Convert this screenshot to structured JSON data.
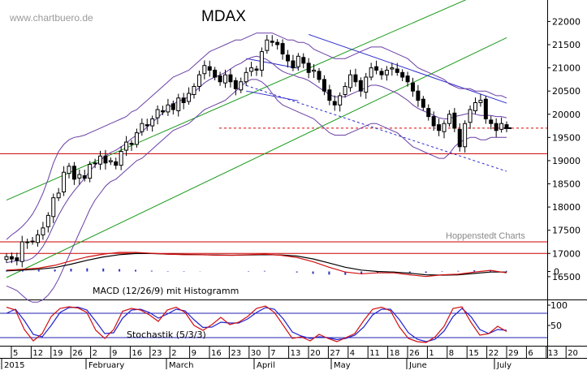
{
  "watermark": "www.chartbuero.de",
  "hoppenstedt": "Hoppenstedt Charts",
  "chart_data": [
    {
      "type": "candlestick",
      "title": "MDAX",
      "ylim": [
        16200,
        22200
      ],
      "yticks": [
        16500,
        17000,
        17500,
        18000,
        18500,
        19000,
        19500,
        20000,
        20500,
        21000,
        21500,
        22000
      ],
      "ytick_labels": [
        "16500",
        "17000",
        "17500",
        "18000",
        "18500",
        "19000",
        "19500",
        "20000",
        "20500",
        "21000",
        "21500",
        "22000"
      ],
      "x_tick_labels": [
        "5",
        "12",
        "19",
        "26",
        "2",
        "9",
        "16",
        "23",
        "2",
        "9",
        "16",
        "23",
        "30",
        "7",
        "13",
        "20",
        "27",
        "4",
        "11",
        "18",
        "26",
        "1",
        "8",
        "15",
        "22",
        "29",
        "6",
        "13",
        "20"
      ],
      "month_labels": [
        "2015",
        "February",
        "March",
        "April",
        "May",
        "June",
        "July"
      ],
      "close": [
        16930,
        16880,
        16850,
        17250,
        17240,
        17260,
        17400,
        17550,
        17820,
        18200,
        18300,
        18750,
        18880,
        18600,
        18700,
        18620,
        18920,
        18950,
        19100,
        18950,
        19000,
        18900,
        19200,
        19400,
        19350,
        19600,
        19800,
        19750,
        19900,
        20100,
        20050,
        20200,
        20100,
        20350,
        20250,
        20450,
        20600,
        20850,
        21050,
        20950,
        20800,
        20700,
        20850,
        20700,
        20550,
        20700,
        20900,
        21000,
        20950,
        21350,
        21600,
        21550,
        21500,
        21300,
        21150,
        21000,
        21250,
        21100,
        20900,
        20950,
        20750,
        20500,
        20300,
        20200,
        20400,
        20600,
        20850,
        20700,
        20500,
        20800,
        21000,
        20950,
        20850,
        20950,
        21000,
        20900,
        20800,
        20700,
        20500,
        20300,
        20150,
        19950,
        19750,
        19650,
        19800,
        20000,
        19700,
        19300,
        19800,
        20100,
        20250,
        20300,
        19900,
        19800,
        19650,
        19800,
        19700
      ],
      "bb_upper": [
        17300,
        17400,
        17480,
        17580,
        17700,
        17850,
        18050,
        18300,
        18600,
        18950,
        19200,
        19350,
        19450,
        19500,
        19520,
        19550,
        19600,
        19650,
        19700,
        19750,
        19800,
        19850,
        19900,
        19950,
        20050,
        20100,
        20200,
        20300,
        20400,
        20500,
        20600,
        20700,
        20800,
        20850,
        20900,
        20950,
        21050,
        21150,
        21250,
        21350,
        21400,
        21450,
        21500,
        21550,
        21600,
        21600,
        21650,
        21700,
        21750,
        21750,
        21750,
        21750,
        21700,
        21650,
        21600,
        21600,
        21550,
        21550,
        21500,
        21400,
        21350,
        21300,
        21250,
        21200,
        21200,
        21200,
        21250,
        21300,
        21350,
        21400,
        21450,
        21450,
        21450,
        21400,
        21350,
        21300,
        21250,
        21200,
        21100,
        21000,
        20950,
        20900,
        20850,
        20800,
        20750,
        20650,
        20600,
        20550,
        20550,
        20550,
        20500,
        20500,
        20500,
        20450,
        20400,
        20400,
        20350
      ],
      "bb_lower": [
        16300,
        16250,
        16200,
        16100,
        16000,
        15950,
        15950,
        16000,
        16100,
        16250,
        16450,
        16700,
        16950,
        17200,
        17450,
        17700,
        17950,
        18150,
        18300,
        18450,
        18550,
        18600,
        18700,
        18800,
        18900,
        19000,
        19050,
        19150,
        19250,
        19350,
        19450,
        19550,
        19650,
        19700,
        19750,
        19800,
        19900,
        20000,
        20100,
        20150,
        20200,
        20250,
        20300,
        20400,
        20500,
        20600,
        20700,
        20750,
        20750,
        20700,
        20600,
        20450,
        20300,
        20200,
        20150,
        20100,
        20050,
        20000,
        19950,
        19900,
        19800,
        19700,
        19600,
        19550,
        19550,
        19550,
        19600,
        19650,
        19700,
        19750,
        19800,
        19800,
        19750,
        19700,
        19650,
        19600,
        19500,
        19400,
        19300,
        19250,
        19200,
        19150,
        19100,
        19050,
        19050,
        19150,
        19300,
        19400,
        19450,
        19500,
        19500,
        19450,
        19450,
        19500,
        19500,
        19500,
        19500
      ],
      "hlines_red": [
        19150,
        17250,
        17000
      ],
      "dashed_red_level": 19700,
      "trend_upper_green": [
        [
          0,
          18150
        ],
        [
          96,
          22850
        ]
      ],
      "trend_lower_green": [
        [
          0,
          16480
        ],
        [
          96,
          21650
        ]
      ],
      "trend_down_blue": [
        [
          58,
          21720
        ],
        [
          96,
          20240
        ]
      ],
      "trend_down_blue_dashed": [
        [
          46,
          20620
        ],
        [
          96,
          18770
        ]
      ],
      "trend_up_blue_short": [
        [
          46,
          21200
        ],
        [
          56,
          20990
        ]
      ],
      "trend_up_blue_short2": [
        [
          46,
          20500
        ],
        [
          56,
          20290
        ]
      ]
    },
    {
      "type": "line",
      "title": "MACD (12/26/9) mit Histogramm",
      "ylim": [
        -1,
        1
      ],
      "yticks": [
        0
      ],
      "ytick_labels": [
        "0"
      ],
      "series": [
        {
          "values": [
            0.05,
            0.08,
            0.12,
            0.22,
            0.38,
            0.52,
            0.62,
            0.68,
            0.68,
            0.65,
            0.62,
            0.6,
            0.6,
            0.58,
            0.58,
            0.6,
            0.62,
            0.58,
            0.5,
            0.35,
            0.15,
            -0.02,
            -0.08,
            -0.05,
            -0.05,
            -0.12,
            -0.18,
            -0.12,
            -0.1,
            -0.02,
            0.04,
            -0.05
          ]
        },
        {
          "values": [
            0.02,
            0.05,
            0.08,
            0.14,
            0.26,
            0.4,
            0.52,
            0.6,
            0.64,
            0.64,
            0.62,
            0.61,
            0.6,
            0.59,
            0.58,
            0.59,
            0.6,
            0.59,
            0.55,
            0.45,
            0.3,
            0.15,
            0.05,
            0.0,
            -0.02,
            -0.06,
            -0.12,
            -0.13,
            -0.12,
            -0.07,
            -0.02,
            -0.02
          ]
        }
      ],
      "histogram": [
        0.05,
        0.06,
        0.08,
        0.1,
        0.14,
        0.16,
        0.15,
        0.12,
        0.08,
        0.04,
        0.02,
        0.02,
        0.01,
        0.0,
        0.0,
        0.02,
        0.03,
        0.0,
        -0.05,
        -0.12,
        -0.16,
        -0.17,
        -0.14,
        -0.07,
        -0.03,
        -0.06,
        -0.07,
        0.02,
        0.03,
        0.06,
        0.07,
        0.03
      ]
    },
    {
      "type": "line",
      "title": "Stochastik (5/3/3)",
      "ylim": [
        0,
        112
      ],
      "yticks": [
        50,
        100
      ],
      "ytick_labels": [
        "50",
        "100"
      ],
      "hlines": [
        20,
        80
      ],
      "series": [
        {
          "values": [
            95,
            88,
            40,
            12,
            30,
            72,
            92,
            96,
            93,
            82,
            38,
            18,
            40,
            85,
            92,
            88,
            76,
            60,
            88,
            95,
            82,
            50,
            38,
            52,
            70,
            52,
            58,
            72,
            92,
            98,
            82,
            50,
            18,
            22,
            12,
            28,
            18,
            10,
            20,
            30,
            62,
            90,
            95,
            86,
            46,
            18,
            10,
            8,
            22,
            48,
            92,
            96,
            58,
            26,
            30,
            48,
            35
          ]
        },
        {
          "values": [
            80,
            90,
            62,
            28,
            22,
            50,
            82,
            94,
            95,
            88,
            60,
            30,
            32,
            68,
            88,
            90,
            82,
            68,
            78,
            90,
            86,
            64,
            45,
            46,
            58,
            56,
            56,
            66,
            82,
            94,
            90,
            66,
            34,
            24,
            18,
            22,
            20,
            15,
            18,
            26,
            46,
            76,
            90,
            90,
            64,
            32,
            16,
            10,
            16,
            36,
            72,
            92,
            72,
            40,
            30,
            40,
            38
          ]
        }
      ]
    }
  ]
}
